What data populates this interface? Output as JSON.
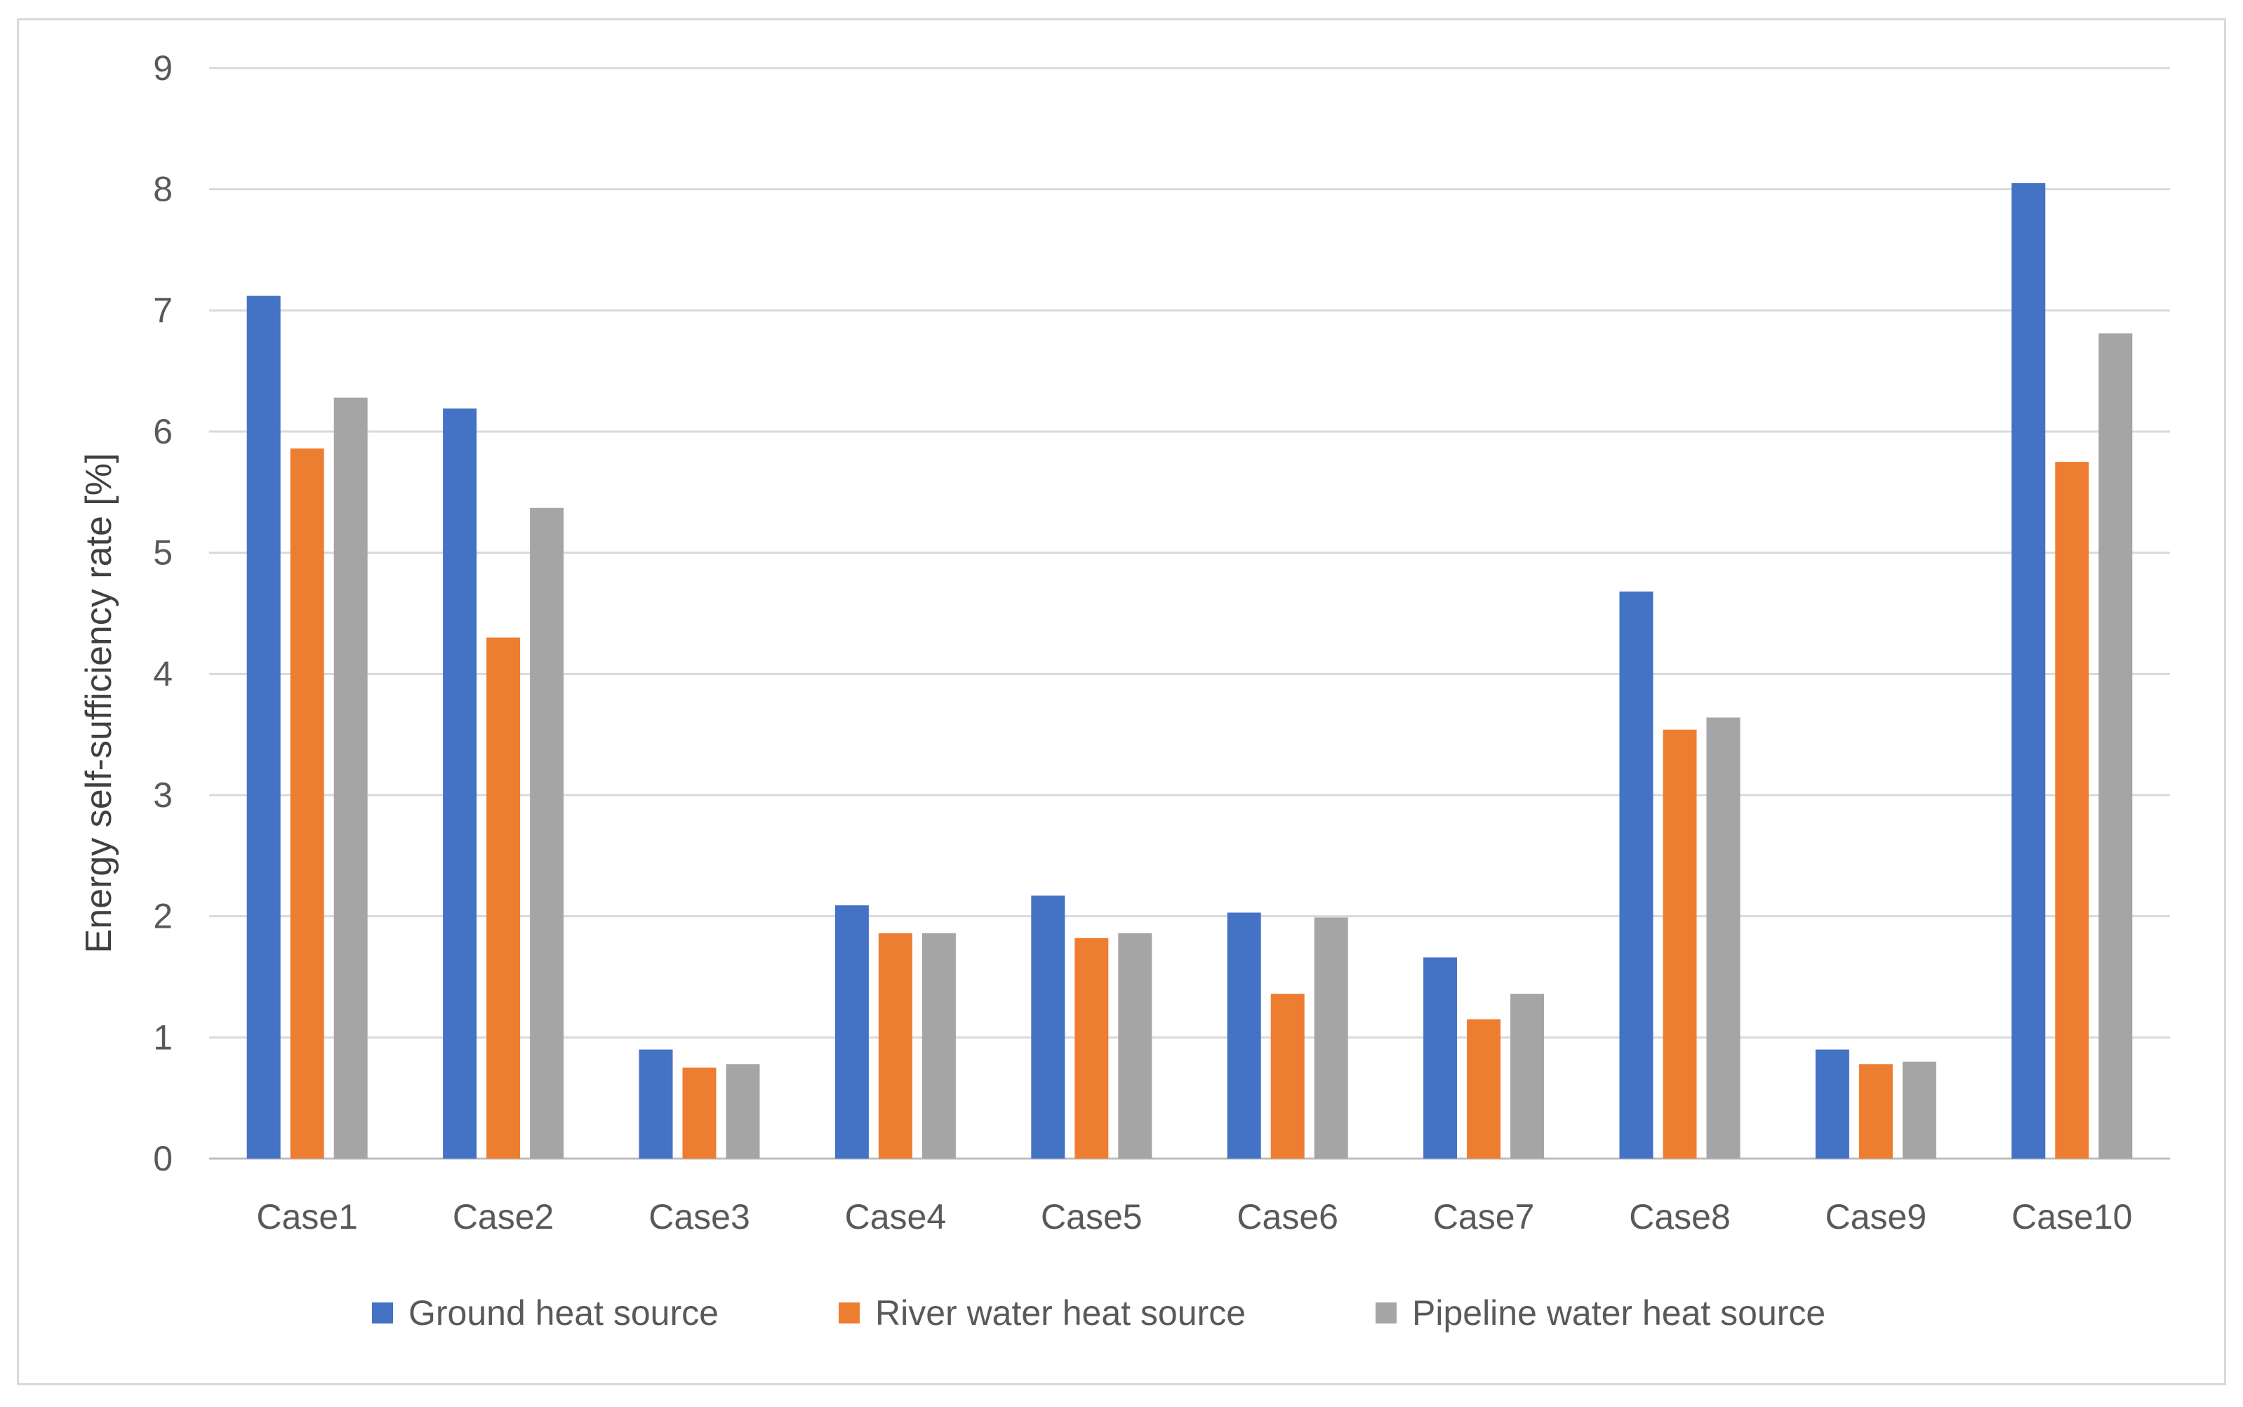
{
  "chart_data": {
    "type": "bar",
    "title": "",
    "xlabel": "",
    "ylabel": "Energy self-sufficiency rate [%]",
    "ylim": [
      0,
      9
    ],
    "yticks": [
      0,
      1,
      2,
      3,
      4,
      5,
      6,
      7,
      8,
      9
    ],
    "ytick_labels": [
      "0",
      "1",
      "2",
      "3",
      "4",
      "5",
      "6",
      "7",
      "8",
      "9"
    ],
    "grid": true,
    "legend_position": "bottom",
    "categories": [
      "Case1",
      "Case2",
      "Case3",
      "Case4",
      "Case5",
      "Case6",
      "Case7",
      "Case8",
      "Case9",
      "Case10"
    ],
    "series": [
      {
        "name": "Ground heat source",
        "color": "#4472c4",
        "values": [
          7.12,
          6.19,
          0.9,
          2.09,
          2.17,
          2.03,
          1.66,
          4.68,
          0.9,
          8.05
        ]
      },
      {
        "name": "River water heat source",
        "color": "#ed7d31",
        "values": [
          5.86,
          4.3,
          0.75,
          1.86,
          1.82,
          1.36,
          1.15,
          3.54,
          0.78,
          5.75
        ]
      },
      {
        "name": "Pipeline water heat source",
        "color": "#a5a5a5",
        "values": [
          6.28,
          5.37,
          0.78,
          1.86,
          1.86,
          1.99,
          1.36,
          3.64,
          0.8,
          6.81
        ]
      }
    ]
  }
}
